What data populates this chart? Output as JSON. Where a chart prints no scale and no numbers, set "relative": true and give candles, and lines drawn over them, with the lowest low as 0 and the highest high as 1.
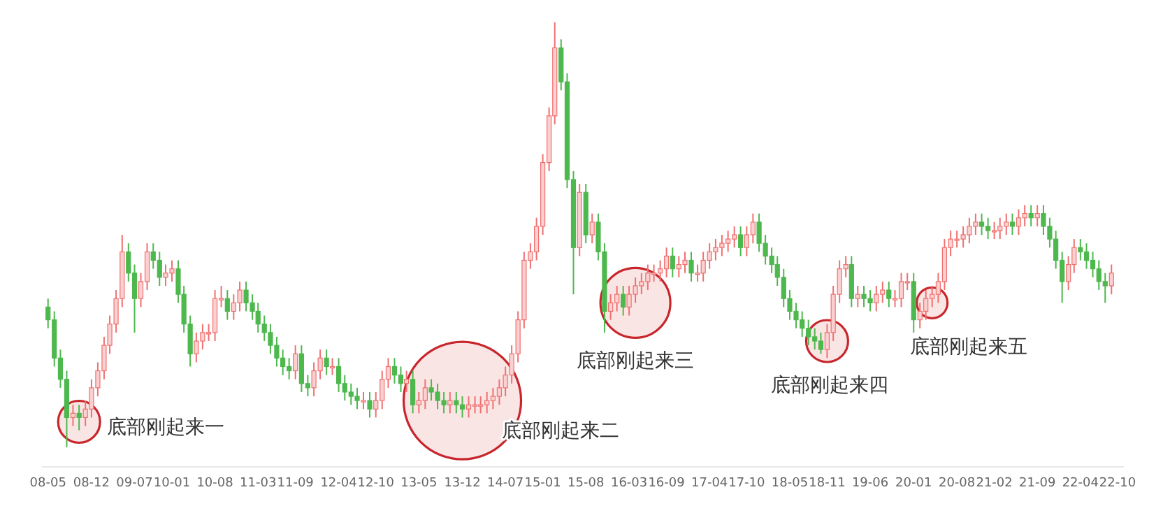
{
  "chart_data": {
    "type": "candlestick",
    "relative": true,
    "xlim": [
      "2008-04",
      "2022-11"
    ],
    "xticks": [
      {
        "value": "2008-05",
        "label": "08-05"
      },
      {
        "value": "2008-12",
        "label": "08-12"
      },
      {
        "value": "2009-07",
        "label": "09-07"
      },
      {
        "value": "2010-01",
        "label": "10-01"
      },
      {
        "value": "2010-08",
        "label": "10-08"
      },
      {
        "value": "2011-03",
        "label": "11-03"
      },
      {
        "value": "2011-09",
        "label": "11-09"
      },
      {
        "value": "2012-04",
        "label": "12-04"
      },
      {
        "value": "2012-10",
        "label": "12-10"
      },
      {
        "value": "2013-05",
        "label": "13-05"
      },
      {
        "value": "2013-12",
        "label": "13-12"
      },
      {
        "value": "2014-07",
        "label": "14-07"
      },
      {
        "value": "2015-01",
        "label": "15-01"
      },
      {
        "value": "2015-08",
        "label": "15-08"
      },
      {
        "value": "2016-03",
        "label": "16-03"
      },
      {
        "value": "2016-09",
        "label": "16-09"
      },
      {
        "value": "2017-04",
        "label": "17-04"
      },
      {
        "value": "2017-10",
        "label": "17-10"
      },
      {
        "value": "2018-05",
        "label": "18-05"
      },
      {
        "value": "2018-11",
        "label": "18-11"
      },
      {
        "value": "2019-06",
        "label": "19-06"
      },
      {
        "value": "2020-01",
        "label": "20-01"
      },
      {
        "value": "2020-08",
        "label": "20-08"
      },
      {
        "value": "2021-02",
        "label": "21-02"
      },
      {
        "value": "2021-09",
        "label": "21-09"
      },
      {
        "value": "2022-04",
        "label": "22-04"
      },
      {
        "value": "2022-10",
        "label": "22-10"
      }
    ],
    "x": [
      "2008-05",
      "2008-06",
      "2008-07",
      "2008-08",
      "2008-09",
      "2008-10",
      "2008-11",
      "2008-12",
      "2009-01",
      "2009-02",
      "2009-03",
      "2009-04",
      "2009-05",
      "2009-06",
      "2009-07",
      "2009-08",
      "2009-09",
      "2009-10",
      "2009-11",
      "2009-12",
      "2010-01",
      "2010-02",
      "2010-03",
      "2010-04",
      "2010-05",
      "2010-06",
      "2010-07",
      "2010-08",
      "2010-09",
      "2010-10",
      "2010-11",
      "2010-12",
      "2011-01",
      "2011-02",
      "2011-03",
      "2011-04",
      "2011-05",
      "2011-06",
      "2011-07",
      "2011-08",
      "2011-09",
      "2011-10",
      "2011-11",
      "2011-12",
      "2012-01",
      "2012-02",
      "2012-03",
      "2012-04",
      "2012-05",
      "2012-06",
      "2012-07",
      "2012-08",
      "2012-09",
      "2012-10",
      "2012-11",
      "2012-12",
      "2013-01",
      "2013-02",
      "2013-03",
      "2013-04",
      "2013-05",
      "2013-06",
      "2013-07",
      "2013-08",
      "2013-09",
      "2013-10",
      "2013-11",
      "2013-12",
      "2014-01",
      "2014-02",
      "2014-03",
      "2014-04",
      "2014-05",
      "2014-06",
      "2014-07",
      "2014-08",
      "2014-09",
      "2014-10",
      "2014-11",
      "2014-12",
      "2015-01",
      "2015-02",
      "2015-03",
      "2015-04",
      "2015-05",
      "2015-06",
      "2015-07",
      "2015-08",
      "2015-09",
      "2015-10",
      "2015-11",
      "2015-12",
      "2016-01",
      "2016-02",
      "2016-03",
      "2016-04",
      "2016-05",
      "2016-06",
      "2016-07",
      "2016-08",
      "2016-09",
      "2016-10",
      "2016-11",
      "2016-12",
      "2017-01",
      "2017-02",
      "2017-03",
      "2017-04",
      "2017-05",
      "2017-06",
      "2017-07",
      "2017-08",
      "2017-09",
      "2017-10",
      "2017-11",
      "2017-12",
      "2018-01",
      "2018-02",
      "2018-03",
      "2018-04",
      "2018-05",
      "2018-06",
      "2018-07",
      "2018-08",
      "2018-09",
      "2018-10",
      "2018-11",
      "2018-12",
      "2019-01",
      "2019-02",
      "2019-03",
      "2019-04",
      "2019-05",
      "2019-06",
      "2019-07",
      "2019-08",
      "2019-09",
      "2019-10",
      "2019-11",
      "2019-12",
      "2020-01",
      "2020-02",
      "2020-03",
      "2020-04",
      "2020-05",
      "2020-06",
      "2020-07",
      "2020-08",
      "2020-09",
      "2020-10",
      "2020-11",
      "2020-12",
      "2021-01",
      "2021-02",
      "2021-03",
      "2021-04",
      "2021-05",
      "2021-06",
      "2021-07",
      "2021-08",
      "2021-09",
      "2021-10",
      "2021-11",
      "2021-12",
      "2022-01",
      "2022-02",
      "2022-03",
      "2022-04",
      "2022-05",
      "2022-06",
      "2022-07",
      "2022-08",
      "2022-09"
    ],
    "ohlc": [
      [
        0.33,
        0.35,
        0.28,
        0.3
      ],
      [
        0.3,
        0.32,
        0.19,
        0.21
      ],
      [
        0.21,
        0.23,
        0.14,
        0.16
      ],
      [
        0.16,
        0.18,
        0.0,
        0.07
      ],
      [
        0.07,
        0.1,
        0.05,
        0.08
      ],
      [
        0.08,
        0.1,
        0.04,
        0.07
      ],
      [
        0.07,
        0.11,
        0.05,
        0.09
      ],
      [
        0.09,
        0.16,
        0.07,
        0.14
      ],
      [
        0.14,
        0.2,
        0.12,
        0.18
      ],
      [
        0.18,
        0.26,
        0.16,
        0.24
      ],
      [
        0.24,
        0.31,
        0.22,
        0.29
      ],
      [
        0.29,
        0.37,
        0.27,
        0.35
      ],
      [
        0.35,
        0.5,
        0.33,
        0.46
      ],
      [
        0.46,
        0.48,
        0.39,
        0.41
      ],
      [
        0.41,
        0.43,
        0.27,
        0.35
      ],
      [
        0.35,
        0.41,
        0.33,
        0.39
      ],
      [
        0.39,
        0.48,
        0.37,
        0.46
      ],
      [
        0.46,
        0.48,
        0.42,
        0.44
      ],
      [
        0.44,
        0.46,
        0.38,
        0.4
      ],
      [
        0.4,
        0.43,
        0.38,
        0.41
      ],
      [
        0.41,
        0.44,
        0.39,
        0.42
      ],
      [
        0.42,
        0.44,
        0.34,
        0.36
      ],
      [
        0.36,
        0.38,
        0.27,
        0.29
      ],
      [
        0.29,
        0.31,
        0.19,
        0.22
      ],
      [
        0.22,
        0.27,
        0.2,
        0.25
      ],
      [
        0.25,
        0.29,
        0.23,
        0.27
      ],
      [
        0.27,
        0.29,
        0.25,
        0.27
      ],
      [
        0.27,
        0.37,
        0.25,
        0.35
      ],
      [
        0.35,
        0.38,
        0.33,
        0.35
      ],
      [
        0.35,
        0.37,
        0.3,
        0.32
      ],
      [
        0.32,
        0.36,
        0.3,
        0.34
      ],
      [
        0.34,
        0.39,
        0.32,
        0.37
      ],
      [
        0.37,
        0.39,
        0.32,
        0.34
      ],
      [
        0.34,
        0.36,
        0.3,
        0.32
      ],
      [
        0.32,
        0.34,
        0.27,
        0.29
      ],
      [
        0.29,
        0.31,
        0.25,
        0.27
      ],
      [
        0.27,
        0.29,
        0.22,
        0.24
      ],
      [
        0.24,
        0.26,
        0.19,
        0.21
      ],
      [
        0.21,
        0.23,
        0.17,
        0.19
      ],
      [
        0.19,
        0.21,
        0.16,
        0.18
      ],
      [
        0.18,
        0.24,
        0.16,
        0.22
      ],
      [
        0.22,
        0.24,
        0.13,
        0.15
      ],
      [
        0.15,
        0.17,
        0.12,
        0.14
      ],
      [
        0.14,
        0.2,
        0.12,
        0.18
      ],
      [
        0.18,
        0.23,
        0.16,
        0.21
      ],
      [
        0.21,
        0.23,
        0.17,
        0.19
      ],
      [
        0.19,
        0.21,
        0.17,
        0.19
      ],
      [
        0.19,
        0.21,
        0.13,
        0.15
      ],
      [
        0.15,
        0.17,
        0.11,
        0.13
      ],
      [
        0.13,
        0.15,
        0.1,
        0.12
      ],
      [
        0.12,
        0.14,
        0.09,
        0.11
      ],
      [
        0.11,
        0.13,
        0.09,
        0.11
      ],
      [
        0.11,
        0.13,
        0.07,
        0.09
      ],
      [
        0.09,
        0.13,
        0.07,
        0.11
      ],
      [
        0.11,
        0.18,
        0.09,
        0.16
      ],
      [
        0.16,
        0.21,
        0.14,
        0.19
      ],
      [
        0.19,
        0.21,
        0.15,
        0.17
      ],
      [
        0.17,
        0.19,
        0.13,
        0.15
      ],
      [
        0.15,
        0.18,
        0.13,
        0.16
      ],
      [
        0.16,
        0.18,
        0.08,
        0.1
      ],
      [
        0.1,
        0.13,
        0.08,
        0.11
      ],
      [
        0.11,
        0.16,
        0.09,
        0.14
      ],
      [
        0.14,
        0.16,
        0.11,
        0.13
      ],
      [
        0.13,
        0.15,
        0.09,
        0.11
      ],
      [
        0.11,
        0.13,
        0.08,
        0.1
      ],
      [
        0.1,
        0.13,
        0.08,
        0.11
      ],
      [
        0.11,
        0.13,
        0.08,
        0.1
      ],
      [
        0.1,
        0.12,
        0.07,
        0.09
      ],
      [
        0.09,
        0.12,
        0.07,
        0.1
      ],
      [
        0.1,
        0.12,
        0.08,
        0.1
      ],
      [
        0.1,
        0.12,
        0.08,
        0.1
      ],
      [
        0.1,
        0.13,
        0.08,
        0.11
      ],
      [
        0.11,
        0.14,
        0.09,
        0.12
      ],
      [
        0.12,
        0.16,
        0.1,
        0.14
      ],
      [
        0.14,
        0.19,
        0.12,
        0.17
      ],
      [
        0.17,
        0.24,
        0.15,
        0.22
      ],
      [
        0.22,
        0.32,
        0.2,
        0.3
      ],
      [
        0.3,
        0.46,
        0.28,
        0.44
      ],
      [
        0.44,
        0.48,
        0.42,
        0.46
      ],
      [
        0.46,
        0.54,
        0.44,
        0.52
      ],
      [
        0.52,
        0.69,
        0.5,
        0.67
      ],
      [
        0.67,
        0.8,
        0.65,
        0.78
      ],
      [
        0.78,
        1.0,
        0.76,
        0.94
      ],
      [
        0.94,
        0.96,
        0.84,
        0.86
      ],
      [
        0.86,
        0.88,
        0.61,
        0.63
      ],
      [
        0.63,
        0.65,
        0.36,
        0.47
      ],
      [
        0.47,
        0.62,
        0.45,
        0.6
      ],
      [
        0.6,
        0.62,
        0.48,
        0.5
      ],
      [
        0.5,
        0.55,
        0.48,
        0.53
      ],
      [
        0.53,
        0.55,
        0.44,
        0.46
      ],
      [
        0.46,
        0.48,
        0.27,
        0.32
      ],
      [
        0.32,
        0.36,
        0.3,
        0.34
      ],
      [
        0.34,
        0.38,
        0.32,
        0.36
      ],
      [
        0.36,
        0.38,
        0.31,
        0.33
      ],
      [
        0.33,
        0.38,
        0.31,
        0.36
      ],
      [
        0.36,
        0.4,
        0.34,
        0.38
      ],
      [
        0.38,
        0.41,
        0.36,
        0.39
      ],
      [
        0.39,
        0.43,
        0.37,
        0.41
      ],
      [
        0.41,
        0.43,
        0.39,
        0.41
      ],
      [
        0.41,
        0.44,
        0.39,
        0.42
      ],
      [
        0.42,
        0.47,
        0.4,
        0.45
      ],
      [
        0.45,
        0.47,
        0.4,
        0.42
      ],
      [
        0.42,
        0.45,
        0.4,
        0.43
      ],
      [
        0.43,
        0.46,
        0.41,
        0.44
      ],
      [
        0.44,
        0.46,
        0.39,
        0.41
      ],
      [
        0.41,
        0.43,
        0.39,
        0.41
      ],
      [
        0.41,
        0.46,
        0.39,
        0.44
      ],
      [
        0.44,
        0.48,
        0.42,
        0.46
      ],
      [
        0.46,
        0.49,
        0.44,
        0.47
      ],
      [
        0.47,
        0.5,
        0.45,
        0.48
      ],
      [
        0.48,
        0.51,
        0.46,
        0.49
      ],
      [
        0.49,
        0.52,
        0.47,
        0.5
      ],
      [
        0.5,
        0.52,
        0.45,
        0.47
      ],
      [
        0.47,
        0.52,
        0.45,
        0.5
      ],
      [
        0.5,
        0.55,
        0.48,
        0.53
      ],
      [
        0.53,
        0.55,
        0.46,
        0.48
      ],
      [
        0.48,
        0.5,
        0.43,
        0.45
      ],
      [
        0.45,
        0.47,
        0.41,
        0.43
      ],
      [
        0.43,
        0.45,
        0.38,
        0.4
      ],
      [
        0.4,
        0.42,
        0.33,
        0.35
      ],
      [
        0.35,
        0.37,
        0.3,
        0.32
      ],
      [
        0.32,
        0.34,
        0.28,
        0.3
      ],
      [
        0.3,
        0.32,
        0.26,
        0.28
      ],
      [
        0.28,
        0.3,
        0.24,
        0.26
      ],
      [
        0.26,
        0.28,
        0.23,
        0.25
      ],
      [
        0.25,
        0.27,
        0.22,
        0.23
      ],
      [
        0.23,
        0.29,
        0.21,
        0.27
      ],
      [
        0.27,
        0.38,
        0.25,
        0.36
      ],
      [
        0.36,
        0.44,
        0.34,
        0.42
      ],
      [
        0.42,
        0.45,
        0.4,
        0.43
      ],
      [
        0.43,
        0.45,
        0.33,
        0.35
      ],
      [
        0.35,
        0.38,
        0.33,
        0.36
      ],
      [
        0.36,
        0.38,
        0.33,
        0.35
      ],
      [
        0.35,
        0.37,
        0.32,
        0.34
      ],
      [
        0.34,
        0.38,
        0.32,
        0.36
      ],
      [
        0.36,
        0.39,
        0.34,
        0.37
      ],
      [
        0.37,
        0.39,
        0.33,
        0.35
      ],
      [
        0.35,
        0.37,
        0.33,
        0.35
      ],
      [
        0.35,
        0.41,
        0.33,
        0.39
      ],
      [
        0.39,
        0.41,
        0.37,
        0.39
      ],
      [
        0.39,
        0.41,
        0.27,
        0.3
      ],
      [
        0.3,
        0.34,
        0.28,
        0.32
      ],
      [
        0.32,
        0.37,
        0.3,
        0.35
      ],
      [
        0.35,
        0.38,
        0.33,
        0.36
      ],
      [
        0.36,
        0.41,
        0.34,
        0.39
      ],
      [
        0.39,
        0.49,
        0.37,
        0.47
      ],
      [
        0.47,
        0.51,
        0.45,
        0.49
      ],
      [
        0.49,
        0.51,
        0.47,
        0.49
      ],
      [
        0.49,
        0.52,
        0.47,
        0.5
      ],
      [
        0.5,
        0.54,
        0.48,
        0.52
      ],
      [
        0.52,
        0.55,
        0.5,
        0.53
      ],
      [
        0.53,
        0.55,
        0.5,
        0.52
      ],
      [
        0.52,
        0.54,
        0.49,
        0.51
      ],
      [
        0.51,
        0.53,
        0.49,
        0.51
      ],
      [
        0.51,
        0.54,
        0.49,
        0.52
      ],
      [
        0.52,
        0.55,
        0.5,
        0.53
      ],
      [
        0.53,
        0.55,
        0.5,
        0.52
      ],
      [
        0.52,
        0.56,
        0.5,
        0.54
      ],
      [
        0.54,
        0.57,
        0.52,
        0.55
      ],
      [
        0.55,
        0.57,
        0.52,
        0.54
      ],
      [
        0.54,
        0.57,
        0.52,
        0.55
      ],
      [
        0.55,
        0.57,
        0.5,
        0.52
      ],
      [
        0.52,
        0.54,
        0.47,
        0.49
      ],
      [
        0.49,
        0.51,
        0.42,
        0.44
      ],
      [
        0.44,
        0.46,
        0.34,
        0.39
      ],
      [
        0.39,
        0.45,
        0.37,
        0.43
      ],
      [
        0.43,
        0.49,
        0.41,
        0.47
      ],
      [
        0.47,
        0.49,
        0.44,
        0.46
      ],
      [
        0.46,
        0.48,
        0.42,
        0.44
      ],
      [
        0.44,
        0.46,
        0.4,
        0.42
      ],
      [
        0.42,
        0.44,
        0.37,
        0.39
      ],
      [
        0.39,
        0.41,
        0.34,
        0.38
      ],
      [
        0.38,
        0.43,
        0.36,
        0.41
      ]
    ],
    "annotations": [
      {
        "text": "底部刚起来一",
        "x": "2008-10",
        "y": 0.06
      },
      {
        "text": "底部刚起来二",
        "x": "2013-12",
        "y": 0.11
      },
      {
        "text": "底部刚起来三",
        "x": "2016-04",
        "y": 0.34
      },
      {
        "text": "底部刚起来四",
        "x": "2018-11",
        "y": 0.25
      },
      {
        "text": "底部刚起来五",
        "x": "2020-04",
        "y": 0.34
      }
    ]
  }
}
